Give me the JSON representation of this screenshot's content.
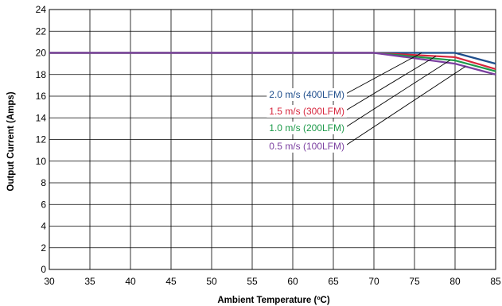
{
  "chart_data": {
    "type": "line",
    "xlabel": "Ambient Temperature (ºC)",
    "ylabel": "Output Current (Amps)",
    "xlim": [
      30,
      85
    ],
    "ylim": [
      0,
      24
    ],
    "x_ticks": [
      "30",
      "35",
      "40",
      "45",
      "50",
      "55",
      "60",
      "65",
      "70",
      "75",
      "80",
      "85"
    ],
    "y_ticks": [
      "0",
      "2",
      "4",
      "6",
      "8",
      "10",
      "12",
      "14",
      "16",
      "18",
      "20",
      "22",
      "24"
    ],
    "grid": true,
    "series": [
      {
        "name": "2.0 m/s (400LFM)",
        "color": "#1f4e8c",
        "x": [
          30,
          70,
          80,
          85
        ],
        "y": [
          20,
          20,
          20,
          19
        ]
      },
      {
        "name": "1.5 m/s (300LFM)",
        "color": "#d7263d",
        "x": [
          30,
          70,
          80,
          85
        ],
        "y": [
          20,
          20,
          19.6,
          18.5
        ]
      },
      {
        "name": "1.0 m/s (200LFM)",
        "color": "#1d9a4a",
        "x": [
          30,
          70,
          80,
          85
        ],
        "y": [
          20,
          20,
          19.3,
          18.3
        ]
      },
      {
        "name": "0.5 m/s (100LFM)",
        "color": "#7b3fa0",
        "x": [
          30,
          70,
          80,
          85
        ],
        "y": [
          20,
          20,
          19,
          18
        ]
      }
    ]
  }
}
